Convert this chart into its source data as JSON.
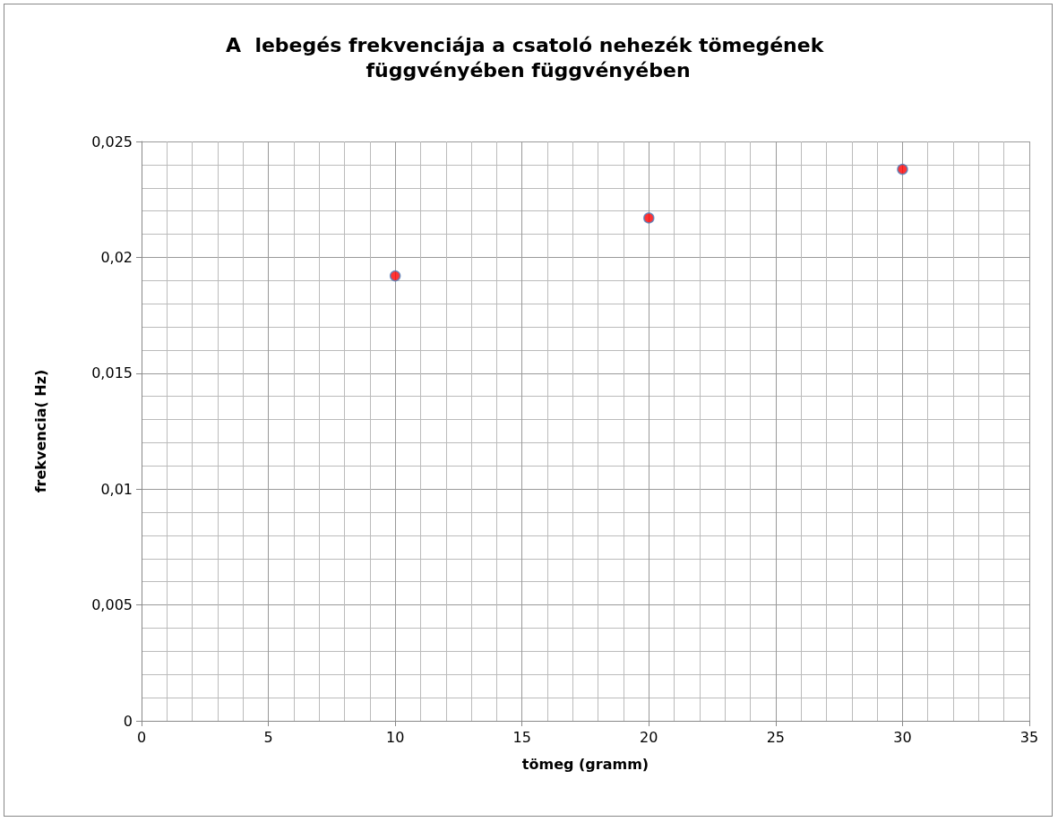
{
  "chart_data": {
    "type": "scatter",
    "title": "A  lebegés frekvenciája a csatoló nehezék tömegének függvényében függvényében",
    "xlabel": "tömeg (gramm)",
    "ylabel": "frekvencia( Hz)",
    "x": [
      10,
      20,
      30
    ],
    "series": [
      {
        "color": "#ff0000",
        "values": [
          0.0192,
          0.0217,
          0.0238
        ]
      }
    ],
    "xlim": [
      0,
      35
    ],
    "xticks": [
      0,
      5,
      10,
      15,
      20,
      25,
      30,
      35
    ],
    "ylim": [
      0,
      0.025
    ],
    "yticks": [
      0,
      {
        "value": 0.005,
        "label": "0,005"
      },
      {
        "value": 0.01,
        "label": "0,01"
      },
      {
        "value": 0.015,
        "label": "0,015"
      },
      {
        "value": 0.02,
        "label": "0,02"
      },
      {
        "value": 0.025,
        "label": "0,025"
      }
    ],
    "grid": true,
    "marker": "circle"
  }
}
